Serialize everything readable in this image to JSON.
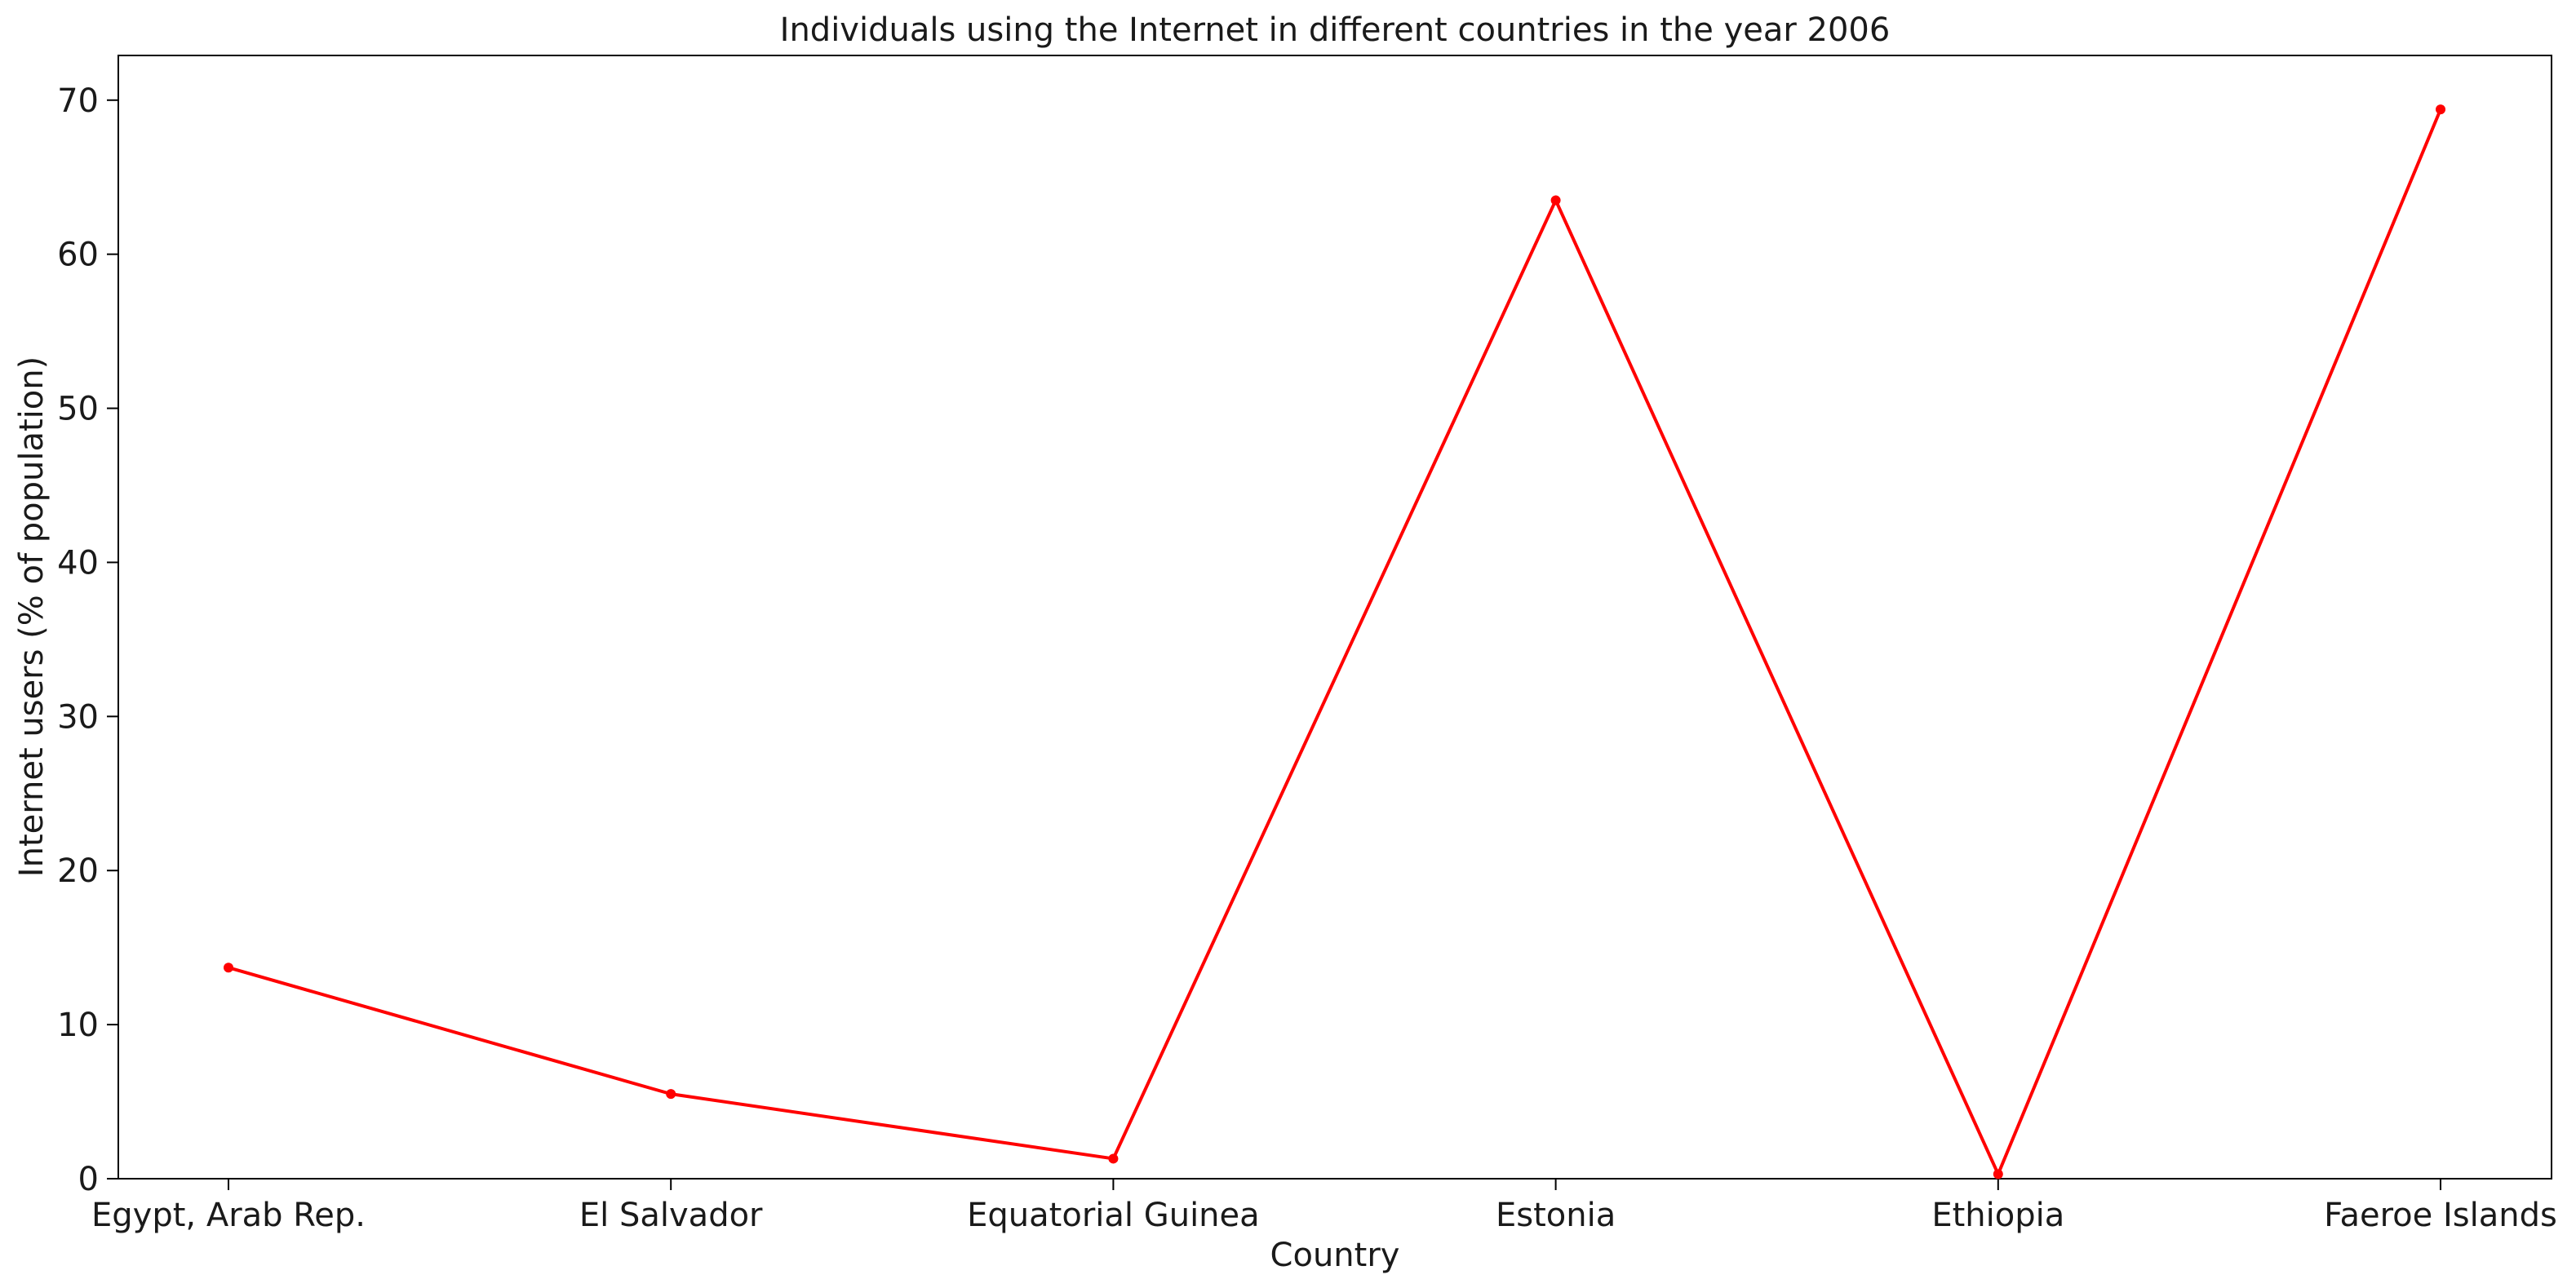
{
  "chart_data": {
    "type": "line",
    "title": "Individuals using the Internet in different countries in the year 2006",
    "xlabel": "Country",
    "ylabel": "Internet users (% of population)",
    "categories": [
      "Egypt, Arab Rep.",
      "El Salvador",
      "Equatorial Guinea",
      "Estonia",
      "Ethiopia",
      "Faeroe Islands"
    ],
    "series": [
      {
        "values": [
          13.7,
          5.5,
          1.3,
          63.5,
          0.3,
          69.4
        ],
        "color": "#ff0000"
      }
    ],
    "ylim": [
      0,
      72.9
    ],
    "yticks": [
      0,
      10,
      20,
      30,
      40,
      50,
      60,
      70
    ],
    "grid": false,
    "legend": "none"
  }
}
